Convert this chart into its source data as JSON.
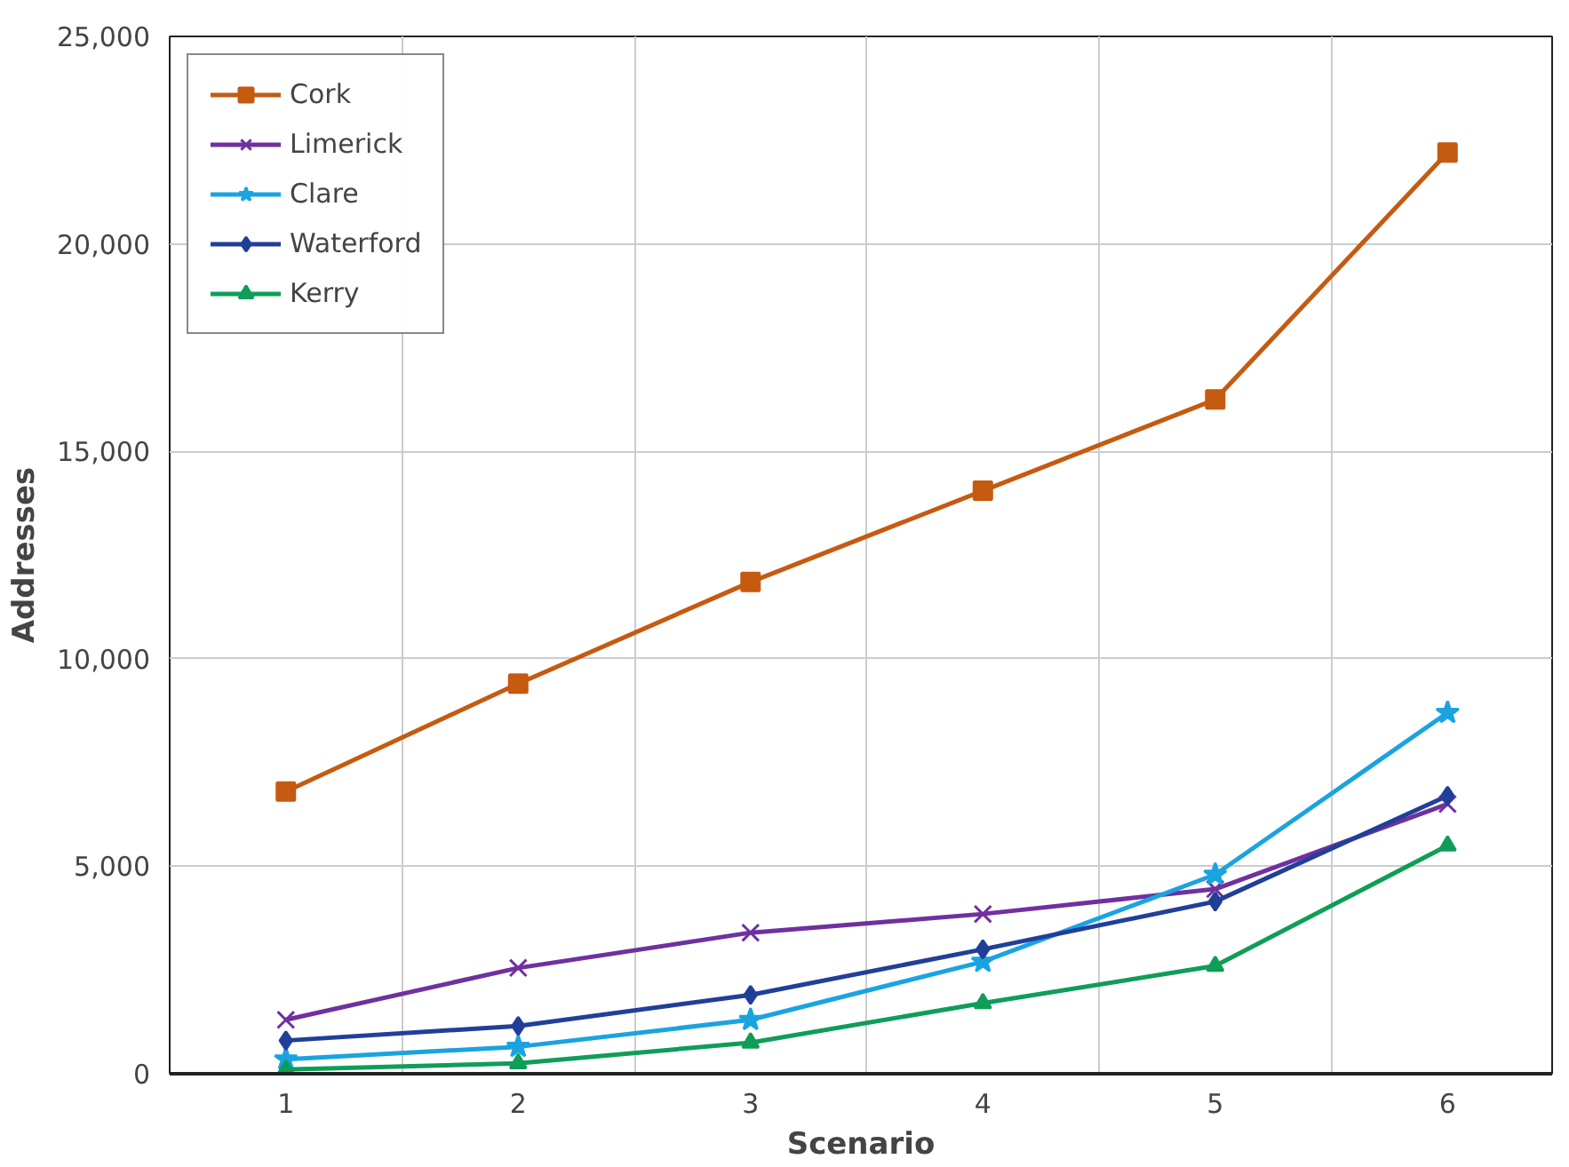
{
  "chart_data": {
    "type": "line",
    "xlabel": "Scenario",
    "ylabel": "Addresses",
    "categories": [
      "1",
      "2",
      "3",
      "4",
      "5",
      "6"
    ],
    "ylim": [
      0,
      25000
    ],
    "yticks": [
      0,
      {
        "value": 5000,
        "label": "5,000"
      },
      {
        "value": 10000,
        "label": "10,000"
      },
      {
        "value": 15000,
        "label": "15,000"
      },
      {
        "value": 20000,
        "label": "20,000"
      },
      {
        "value": 25000,
        "label": "25,000"
      }
    ],
    "grid": true,
    "legend": "top left",
    "series": [
      {
        "name": "Cork",
        "color": "#c55a11",
        "marker": "square",
        "values": [
          6800,
          9400,
          11850,
          14050,
          16250,
          22200
        ]
      },
      {
        "name": "Limerick",
        "color": "#7030a0",
        "marker": "cross",
        "values": [
          1300,
          2550,
          3400,
          3850,
          4450,
          6500
        ]
      },
      {
        "name": "Clare",
        "color": "#1aa3e0",
        "marker": "star",
        "values": [
          350,
          650,
          1300,
          2700,
          4800,
          8700
        ]
      },
      {
        "name": "Waterford",
        "color": "#203f99",
        "marker": "diamond",
        "values": [
          800,
          1150,
          1900,
          3000,
          4150,
          6700
        ]
      },
      {
        "name": "Kerry",
        "color": "#0f9d58",
        "marker": "triangle",
        "values": [
          100,
          250,
          750,
          1700,
          2600,
          5500
        ]
      }
    ]
  }
}
